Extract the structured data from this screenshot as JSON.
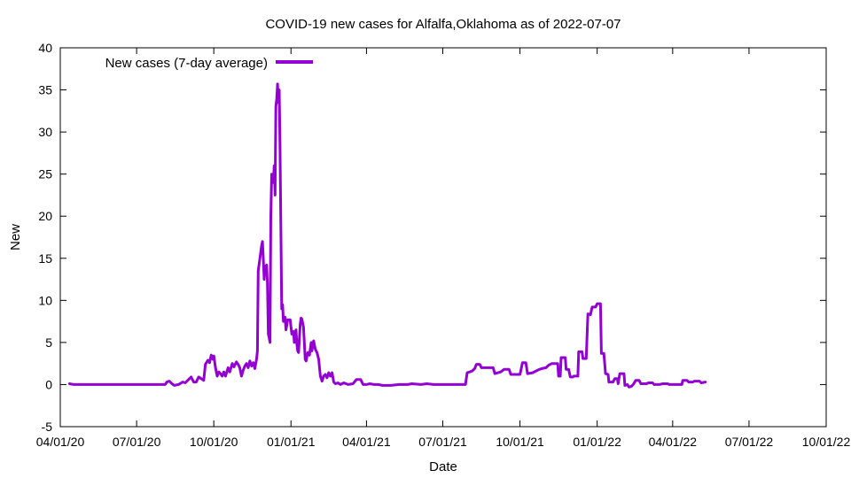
{
  "chart_data": {
    "type": "line",
    "title": "COVID-19 new cases for Alfalfa,Oklahoma as of 2022-07-07",
    "xlabel": "Date",
    "ylabel": "New",
    "x_axis": {
      "type": "date",
      "range": [
        "2020-04-01",
        "2022-10-01"
      ],
      "ticks": [
        {
          "date": "2020-04-01",
          "label": "04/01/20"
        },
        {
          "date": "2020-07-01",
          "label": "07/01/20"
        },
        {
          "date": "2020-10-01",
          "label": "10/01/20"
        },
        {
          "date": "2021-01-01",
          "label": "01/01/21"
        },
        {
          "date": "2021-04-01",
          "label": "04/01/21"
        },
        {
          "date": "2021-07-01",
          "label": "07/01/21"
        },
        {
          "date": "2021-10-01",
          "label": "10/01/21"
        },
        {
          "date": "2022-01-01",
          "label": "01/01/22"
        },
        {
          "date": "2022-04-01",
          "label": "04/01/22"
        },
        {
          "date": "2022-07-01",
          "label": "07/01/22"
        },
        {
          "date": "2022-10-01",
          "label": "10/01/22"
        }
      ]
    },
    "y_axis": {
      "range": [
        -5,
        40
      ],
      "ticks": [
        -5,
        0,
        5,
        10,
        15,
        20,
        25,
        30,
        35,
        40
      ]
    },
    "grid": false,
    "legend_position": "top-left",
    "series": [
      {
        "name": "New cases (7-day average)",
        "color": "#9400d3",
        "points": [
          [
            "2020-04-12",
            0.1
          ],
          [
            "2020-04-17",
            0.0
          ],
          [
            "2020-05-20",
            0.0
          ],
          [
            "2020-06-20",
            0.0
          ],
          [
            "2020-07-20",
            0.0
          ],
          [
            "2020-08-04",
            0.0
          ],
          [
            "2020-08-06",
            0.3
          ],
          [
            "2020-08-09",
            0.4
          ],
          [
            "2020-08-12",
            0.1
          ],
          [
            "2020-08-15",
            -0.1
          ],
          [
            "2020-08-20",
            0.0
          ],
          [
            "2020-08-25",
            0.3
          ],
          [
            "2020-08-28",
            0.2
          ],
          [
            "2020-09-01",
            0.6
          ],
          [
            "2020-09-04",
            0.9
          ],
          [
            "2020-09-07",
            0.3
          ],
          [
            "2020-09-10",
            0.3
          ],
          [
            "2020-09-13",
            0.9
          ],
          [
            "2020-09-16",
            0.7
          ],
          [
            "2020-09-19",
            0.5
          ],
          [
            "2020-09-21",
            2.4
          ],
          [
            "2020-09-24",
            2.9
          ],
          [
            "2020-09-26",
            2.6
          ],
          [
            "2020-09-28",
            3.5
          ],
          [
            "2020-09-30",
            3.0
          ],
          [
            "2020-10-01",
            3.4
          ],
          [
            "2020-10-03",
            2.0
          ],
          [
            "2020-10-05",
            1.0
          ],
          [
            "2020-10-07",
            1.5
          ],
          [
            "2020-10-09",
            1.3
          ],
          [
            "2020-10-11",
            1.0
          ],
          [
            "2020-10-13",
            1.5
          ],
          [
            "2020-10-15",
            1.0
          ],
          [
            "2020-10-18",
            2.0
          ],
          [
            "2020-10-20",
            1.5
          ],
          [
            "2020-10-23",
            2.5
          ],
          [
            "2020-10-25",
            2.1
          ],
          [
            "2020-10-28",
            2.7
          ],
          [
            "2020-10-30",
            2.4
          ],
          [
            "2020-11-01",
            2.0
          ],
          [
            "2020-11-03",
            1.0
          ],
          [
            "2020-11-05",
            1.7
          ],
          [
            "2020-11-07",
            2.2
          ],
          [
            "2020-11-09",
            2.5
          ],
          [
            "2020-11-11",
            2.0
          ],
          [
            "2020-11-13",
            2.8
          ],
          [
            "2020-11-15",
            2.2
          ],
          [
            "2020-11-17",
            2.6
          ],
          [
            "2020-11-19",
            1.9
          ],
          [
            "2020-11-20",
            2.5
          ],
          [
            "2020-11-21",
            3.0
          ],
          [
            "2020-11-22",
            4.0
          ],
          [
            "2020-11-23",
            13.5
          ],
          [
            "2020-11-25",
            15.0
          ],
          [
            "2020-11-27",
            16.5
          ],
          [
            "2020-11-28",
            17.0
          ],
          [
            "2020-11-29",
            15.0
          ],
          [
            "2020-11-30",
            12.5
          ],
          [
            "2020-12-01",
            14.0
          ],
          [
            "2020-12-03",
            14.2
          ],
          [
            "2020-12-04",
            12.0
          ],
          [
            "2020-12-05",
            6.0
          ],
          [
            "2020-12-06",
            5.6
          ],
          [
            "2020-12-07",
            5.0
          ],
          [
            "2020-12-08",
            20.0
          ],
          [
            "2020-12-09",
            25.0
          ],
          [
            "2020-12-11",
            24.0
          ],
          [
            "2020-12-12",
            26.0
          ],
          [
            "2020-12-13",
            22.5
          ],
          [
            "2020-12-14",
            33.0
          ],
          [
            "2020-12-15",
            34.0
          ],
          [
            "2020-12-16",
            35.7
          ],
          [
            "2020-12-17",
            33.5
          ],
          [
            "2020-12-18",
            35.0
          ],
          [
            "2020-12-19",
            28.0
          ],
          [
            "2020-12-21",
            9.0
          ],
          [
            "2020-12-22",
            9.5
          ],
          [
            "2020-12-23",
            7.5
          ],
          [
            "2020-12-25",
            8.0
          ],
          [
            "2020-12-26",
            6.5
          ],
          [
            "2020-12-28",
            7.7
          ],
          [
            "2020-12-31",
            7.7
          ],
          [
            "2021-01-02",
            6.0
          ],
          [
            "2021-01-04",
            6.3
          ],
          [
            "2021-01-05",
            5.0
          ],
          [
            "2021-01-07",
            6.5
          ],
          [
            "2021-01-08",
            4.8
          ],
          [
            "2021-01-09",
            4.0
          ],
          [
            "2021-01-10",
            3.8
          ],
          [
            "2021-01-12",
            7.2
          ],
          [
            "2021-01-13",
            7.9
          ],
          [
            "2021-01-14",
            7.8
          ],
          [
            "2021-01-16",
            6.8
          ],
          [
            "2021-01-18",
            3.0
          ],
          [
            "2021-01-19",
            2.8
          ],
          [
            "2021-01-21",
            3.8
          ],
          [
            "2021-01-23",
            3.5
          ],
          [
            "2021-01-25",
            5.0
          ],
          [
            "2021-01-26",
            4.0
          ],
          [
            "2021-01-28",
            5.2
          ],
          [
            "2021-01-30",
            4.2
          ],
          [
            "2021-02-01",
            3.8
          ],
          [
            "2021-02-03",
            3.0
          ],
          [
            "2021-02-05",
            1.0
          ],
          [
            "2021-02-07",
            0.4
          ],
          [
            "2021-02-09",
            1.0
          ],
          [
            "2021-02-11",
            1.2
          ],
          [
            "2021-02-13",
            0.8
          ],
          [
            "2021-02-15",
            1.4
          ],
          [
            "2021-02-17",
            1.0
          ],
          [
            "2021-02-19",
            1.4
          ],
          [
            "2021-02-21",
            0.3
          ],
          [
            "2021-02-23",
            0.1
          ],
          [
            "2021-02-26",
            0.2
          ],
          [
            "2021-03-01",
            0.0
          ],
          [
            "2021-03-05",
            0.2
          ],
          [
            "2021-03-10",
            0.0
          ],
          [
            "2021-03-16",
            0.1
          ],
          [
            "2021-03-20",
            0.6
          ],
          [
            "2021-03-25",
            0.6
          ],
          [
            "2021-03-28",
            0.0
          ],
          [
            "2021-04-01",
            0.0
          ],
          [
            "2021-04-05",
            0.1
          ],
          [
            "2021-04-10",
            0.0
          ],
          [
            "2021-04-15",
            0.0
          ],
          [
            "2021-04-20",
            -0.1
          ],
          [
            "2021-04-30",
            -0.1
          ],
          [
            "2021-05-10",
            0.0
          ],
          [
            "2021-05-20",
            0.0
          ],
          [
            "2021-05-25",
            0.1
          ],
          [
            "2021-06-05",
            0.0
          ],
          [
            "2021-06-12",
            0.1
          ],
          [
            "2021-06-20",
            0.0
          ],
          [
            "2021-07-15",
            0.0
          ],
          [
            "2021-07-20",
            0.0
          ],
          [
            "2021-07-28",
            0.0
          ],
          [
            "2021-07-30",
            1.4
          ],
          [
            "2021-08-02",
            1.5
          ],
          [
            "2021-08-05",
            1.6
          ],
          [
            "2021-08-08",
            1.9
          ],
          [
            "2021-08-10",
            2.4
          ],
          [
            "2021-08-14",
            2.4
          ],
          [
            "2021-08-16",
            2.0
          ],
          [
            "2021-08-30",
            2.0
          ],
          [
            "2021-09-01",
            1.3
          ],
          [
            "2021-09-08",
            1.5
          ],
          [
            "2021-09-12",
            1.8
          ],
          [
            "2021-09-18",
            1.8
          ],
          [
            "2021-09-20",
            1.2
          ],
          [
            "2021-10-01",
            1.2
          ],
          [
            "2021-10-04",
            2.6
          ],
          [
            "2021-10-08",
            2.6
          ],
          [
            "2021-10-10",
            1.3
          ],
          [
            "2021-10-16",
            1.4
          ],
          [
            "2021-10-20",
            1.6
          ],
          [
            "2021-10-24",
            1.8
          ],
          [
            "2021-10-27",
            1.9
          ],
          [
            "2021-11-01",
            2.0
          ],
          [
            "2021-11-04",
            2.3
          ],
          [
            "2021-11-08",
            2.5
          ],
          [
            "2021-11-15",
            2.5
          ],
          [
            "2021-11-16",
            1.0
          ],
          [
            "2021-11-18",
            1.0
          ],
          [
            "2021-11-19",
            3.2
          ],
          [
            "2021-11-24",
            3.2
          ],
          [
            "2021-11-25",
            1.8
          ],
          [
            "2021-11-28",
            1.8
          ],
          [
            "2021-11-30",
            0.9
          ],
          [
            "2021-12-03",
            0.9
          ],
          [
            "2021-12-04",
            1.0
          ],
          [
            "2021-12-09",
            1.0
          ],
          [
            "2021-12-10",
            3.9
          ],
          [
            "2021-12-14",
            3.9
          ],
          [
            "2021-12-15",
            3.1
          ],
          [
            "2021-12-19",
            3.1
          ],
          [
            "2021-12-21",
            8.4
          ],
          [
            "2021-12-24",
            8.3
          ],
          [
            "2021-12-26",
            9.2
          ],
          [
            "2021-12-30",
            9.2
          ],
          [
            "2022-01-01",
            9.6
          ],
          [
            "2022-01-05",
            9.6
          ],
          [
            "2022-01-06",
            3.7
          ],
          [
            "2022-01-09",
            3.7
          ],
          [
            "2022-01-11",
            1.3
          ],
          [
            "2022-01-14",
            1.2
          ],
          [
            "2022-01-15",
            0.3
          ],
          [
            "2022-01-20",
            0.3
          ],
          [
            "2022-01-22",
            0.7
          ],
          [
            "2022-01-25",
            0.7
          ],
          [
            "2022-01-26",
            0.1
          ],
          [
            "2022-01-28",
            1.3
          ],
          [
            "2022-02-02",
            1.3
          ],
          [
            "2022-02-03",
            -0.1
          ],
          [
            "2022-02-06",
            0.0
          ],
          [
            "2022-02-08",
            -0.3
          ],
          [
            "2022-02-11",
            -0.2
          ],
          [
            "2022-02-13",
            0.0
          ],
          [
            "2022-02-16",
            0.5
          ],
          [
            "2022-02-20",
            0.5
          ],
          [
            "2022-02-22",
            0.1
          ],
          [
            "2022-03-01",
            0.1
          ],
          [
            "2022-03-03",
            0.2
          ],
          [
            "2022-03-08",
            0.2
          ],
          [
            "2022-03-10",
            0.0
          ],
          [
            "2022-03-16",
            0.0
          ],
          [
            "2022-03-20",
            0.1
          ],
          [
            "2022-03-26",
            0.1
          ],
          [
            "2022-03-28",
            0.0
          ],
          [
            "2022-04-12",
            0.0
          ],
          [
            "2022-04-13",
            0.5
          ],
          [
            "2022-04-18",
            0.5
          ],
          [
            "2022-04-20",
            0.3
          ],
          [
            "2022-04-25",
            0.3
          ],
          [
            "2022-04-27",
            0.4
          ],
          [
            "2022-05-03",
            0.4
          ],
          [
            "2022-05-05",
            0.2
          ],
          [
            "2022-05-10",
            0.3
          ]
        ]
      }
    ]
  }
}
